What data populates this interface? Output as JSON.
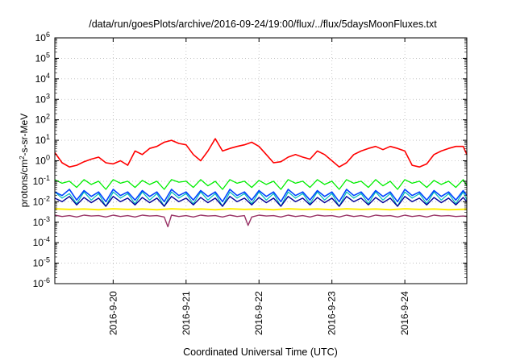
{
  "chart_data": {
    "type": "line",
    "title": "/data/run/goesPlots/archive/2016-09-24/19:00/flux/../flux/5daysMoonFluxes.txt",
    "xlabel": "Coordinated Universal Time (UTC)",
    "ylabel": "protons/cm²-s-sr-MeV",
    "ylabel_parts": {
      "pre": "protons/cm",
      "sup": "2",
      "post": "-s-sr-MeV"
    },
    "yscale": "log",
    "ylim_exp": [
      -6,
      6
    ],
    "xlim_days": [
      19.2,
      24.85
    ],
    "grid": true,
    "x_ticks": [
      {
        "day": 20,
        "label": "2016-9-20"
      },
      {
        "day": 21,
        "label": "2016-9-21"
      },
      {
        "day": 22,
        "label": "2016-9-22"
      },
      {
        "day": 23,
        "label": "2016-9-23"
      },
      {
        "day": 24,
        "label": "2016-9-24"
      }
    ],
    "y_ticks": [
      {
        "exp": -6,
        "base": "10",
        "sup": "-6"
      },
      {
        "exp": -5,
        "base": "10",
        "sup": "-5"
      },
      {
        "exp": -4,
        "base": "10",
        "sup": "-4"
      },
      {
        "exp": -3,
        "base": "10",
        "sup": "-3"
      },
      {
        "exp": -2,
        "base": "10",
        "sup": "-2"
      },
      {
        "exp": -1,
        "base": "10",
        "sup": "-1"
      },
      {
        "exp": 0,
        "base": "10",
        "sup": "0"
      },
      {
        "exp": 1,
        "base": "10",
        "sup": "1"
      },
      {
        "exp": 2,
        "base": "10",
        "sup": "2"
      },
      {
        "exp": 3,
        "base": "10",
        "sup": "3"
      },
      {
        "exp": 4,
        "base": "10",
        "sup": "4"
      },
      {
        "exp": 5,
        "base": "10",
        "sup": "5"
      },
      {
        "exp": 6,
        "base": "10",
        "sup": "6"
      }
    ],
    "series": [
      {
        "color": "#ff0000",
        "width": 1.6,
        "x": [
          19.2,
          19.3,
          19.4,
          19.5,
          19.6,
          19.7,
          19.8,
          19.9,
          20.0,
          20.1,
          20.2,
          20.3,
          20.4,
          20.5,
          20.6,
          20.7,
          20.8,
          20.9,
          21.0,
          21.1,
          21.2,
          21.3,
          21.4,
          21.5,
          21.6,
          21.7,
          21.8,
          21.9,
          22.0,
          22.1,
          22.2,
          22.3,
          22.4,
          22.5,
          22.6,
          22.7,
          22.8,
          22.9,
          23.0,
          23.1,
          23.2,
          23.3,
          23.4,
          23.5,
          23.6,
          23.7,
          23.8,
          23.9,
          24.0,
          24.1,
          24.2,
          24.3,
          24.4,
          24.5,
          24.6,
          24.7,
          24.8,
          24.85
        ],
        "y": [
          2.5,
          0.8,
          0.5,
          0.6,
          0.9,
          1.2,
          1.5,
          0.8,
          0.7,
          1.0,
          0.6,
          3.0,
          2.0,
          4.0,
          5.0,
          8.0,
          10.0,
          7.0,
          6.0,
          2.0,
          1.0,
          3.0,
          12.0,
          3.0,
          4.0,
          5.0,
          6.0,
          8.0,
          5.0,
          2.0,
          0.8,
          0.9,
          1.5,
          2.0,
          1.5,
          1.2,
          3.0,
          2.0,
          1.0,
          0.5,
          0.8,
          2.0,
          3.0,
          4.0,
          5.0,
          3.5,
          5.0,
          4.0,
          3.0,
          0.6,
          0.5,
          0.7,
          2.0,
          3.0,
          4.0,
          5.0,
          5.0,
          2.0
        ]
      },
      {
        "color": "#00ee00",
        "width": 1.3,
        "x": [
          19.2,
          19.3,
          19.4,
          19.5,
          19.6,
          19.7,
          19.8,
          19.9,
          20.0,
          20.1,
          20.2,
          20.3,
          20.4,
          20.5,
          20.6,
          20.7,
          20.8,
          20.9,
          21.0,
          21.1,
          21.2,
          21.3,
          21.4,
          21.5,
          21.6,
          21.7,
          21.8,
          21.9,
          22.0,
          22.1,
          22.2,
          22.3,
          22.4,
          22.5,
          22.6,
          22.7,
          22.8,
          22.9,
          23.0,
          23.1,
          23.2,
          23.3,
          23.4,
          23.5,
          23.6,
          23.7,
          23.8,
          23.9,
          24.0,
          24.1,
          24.2,
          24.3,
          24.4,
          24.5,
          24.6,
          24.7,
          24.8,
          24.85
        ],
        "y": [
          0.12,
          0.08,
          0.1,
          0.05,
          0.12,
          0.07,
          0.1,
          0.04,
          0.12,
          0.08,
          0.1,
          0.05,
          0.11,
          0.07,
          0.1,
          0.04,
          0.12,
          0.09,
          0.1,
          0.05,
          0.12,
          0.06,
          0.1,
          0.04,
          0.12,
          0.08,
          0.1,
          0.05,
          0.11,
          0.07,
          0.1,
          0.04,
          0.12,
          0.08,
          0.1,
          0.05,
          0.12,
          0.07,
          0.1,
          0.04,
          0.12,
          0.08,
          0.1,
          0.05,
          0.12,
          0.06,
          0.1,
          0.04,
          0.12,
          0.08,
          0.1,
          0.05,
          0.11,
          0.07,
          0.1,
          0.05,
          0.12,
          0.06
        ]
      },
      {
        "color": "#00bbbb",
        "width": 1.2,
        "x": [
          19.2,
          19.3,
          19.4,
          19.5,
          19.6,
          19.7,
          19.8,
          19.9,
          20.0,
          20.1,
          20.2,
          20.3,
          20.4,
          20.5,
          20.6,
          20.7,
          20.8,
          20.9,
          21.0,
          21.1,
          21.2,
          21.3,
          21.4,
          21.5,
          21.6,
          21.7,
          21.8,
          21.9,
          22.0,
          22.1,
          22.2,
          22.3,
          22.4,
          22.5,
          22.6,
          22.7,
          22.8,
          22.9,
          23.0,
          23.1,
          23.2,
          23.3,
          23.4,
          23.5,
          23.6,
          23.7,
          23.8,
          23.9,
          24.0,
          24.1,
          24.2,
          24.3,
          24.4,
          24.5,
          24.6,
          24.7,
          24.8,
          24.85
        ],
        "y": [
          0.03,
          0.015,
          0.025,
          0.008,
          0.03,
          0.012,
          0.025,
          0.006,
          0.03,
          0.015,
          0.025,
          0.008,
          0.03,
          0.012,
          0.025,
          0.006,
          0.03,
          0.015,
          0.025,
          0.008,
          0.03,
          0.012,
          0.025,
          0.006,
          0.03,
          0.015,
          0.025,
          0.008,
          0.03,
          0.012,
          0.025,
          0.006,
          0.03,
          0.015,
          0.025,
          0.008,
          0.03,
          0.012,
          0.025,
          0.006,
          0.03,
          0.015,
          0.025,
          0.008,
          0.03,
          0.012,
          0.025,
          0.006,
          0.03,
          0.015,
          0.025,
          0.008,
          0.03,
          0.012,
          0.025,
          0.008,
          0.03,
          0.012
        ]
      },
      {
        "color": "#0044ff",
        "width": 1.6,
        "x": [
          19.2,
          19.3,
          19.4,
          19.5,
          19.6,
          19.7,
          19.8,
          19.9,
          20.0,
          20.1,
          20.2,
          20.3,
          20.4,
          20.5,
          20.6,
          20.7,
          20.8,
          20.9,
          21.0,
          21.1,
          21.2,
          21.3,
          21.4,
          21.5,
          21.6,
          21.7,
          21.8,
          21.9,
          22.0,
          22.1,
          22.2,
          22.3,
          22.4,
          22.5,
          22.6,
          22.7,
          22.8,
          22.9,
          23.0,
          23.1,
          23.2,
          23.3,
          23.4,
          23.5,
          23.6,
          23.7,
          23.8,
          23.9,
          24.0,
          24.1,
          24.2,
          24.3,
          24.4,
          24.5,
          24.6,
          24.7,
          24.8,
          24.85
        ],
        "y": [
          0.03,
          0.02,
          0.04,
          0.012,
          0.035,
          0.018,
          0.03,
          0.01,
          0.04,
          0.02,
          0.03,
          0.012,
          0.035,
          0.018,
          0.03,
          0.01,
          0.04,
          0.02,
          0.03,
          0.012,
          0.035,
          0.018,
          0.03,
          0.01,
          0.04,
          0.02,
          0.03,
          0.012,
          0.035,
          0.018,
          0.03,
          0.01,
          0.04,
          0.02,
          0.03,
          0.012,
          0.035,
          0.018,
          0.03,
          0.01,
          0.04,
          0.02,
          0.03,
          0.012,
          0.035,
          0.018,
          0.03,
          0.01,
          0.04,
          0.02,
          0.03,
          0.012,
          0.035,
          0.018,
          0.03,
          0.012,
          0.035,
          0.02
        ]
      },
      {
        "color": "#000099",
        "width": 1.4,
        "x": [
          19.2,
          19.3,
          19.4,
          19.5,
          19.6,
          19.7,
          19.8,
          19.9,
          20.0,
          20.1,
          20.2,
          20.3,
          20.4,
          20.5,
          20.6,
          20.7,
          20.8,
          20.9,
          21.0,
          21.1,
          21.2,
          21.3,
          21.4,
          21.5,
          21.6,
          21.7,
          21.8,
          21.9,
          22.0,
          22.1,
          22.2,
          22.3,
          22.4,
          22.5,
          22.6,
          22.7,
          22.8,
          22.9,
          23.0,
          23.1,
          23.2,
          23.3,
          23.4,
          23.5,
          23.6,
          23.7,
          23.8,
          23.9,
          24.0,
          24.1,
          24.2,
          24.3,
          24.4,
          24.5,
          24.6,
          24.7,
          24.8,
          24.85
        ],
        "y": [
          0.015,
          0.01,
          0.018,
          0.007,
          0.016,
          0.009,
          0.015,
          0.006,
          0.018,
          0.01,
          0.015,
          0.007,
          0.016,
          0.009,
          0.015,
          0.006,
          0.018,
          0.01,
          0.015,
          0.007,
          0.016,
          0.009,
          0.015,
          0.006,
          0.018,
          0.01,
          0.015,
          0.007,
          0.016,
          0.009,
          0.015,
          0.006,
          0.018,
          0.01,
          0.015,
          0.007,
          0.016,
          0.009,
          0.015,
          0.006,
          0.018,
          0.01,
          0.015,
          0.007,
          0.016,
          0.009,
          0.015,
          0.006,
          0.018,
          0.01,
          0.015,
          0.007,
          0.016,
          0.009,
          0.015,
          0.007,
          0.016,
          0.01
        ]
      },
      {
        "color": "#ffee00",
        "width": 2.0,
        "x": [
          19.2,
          19.4,
          19.6,
          19.8,
          20.0,
          20.2,
          20.4,
          20.6,
          20.8,
          21.0,
          21.2,
          21.4,
          21.6,
          21.8,
          22.0,
          22.2,
          22.4,
          22.6,
          22.8,
          23.0,
          23.2,
          23.4,
          23.6,
          23.8,
          24.0,
          24.2,
          24.4,
          24.6,
          24.85
        ],
        "y": [
          0.0045,
          0.0042,
          0.0044,
          0.0041,
          0.0045,
          0.0042,
          0.0044,
          0.0041,
          0.0045,
          0.0042,
          0.0044,
          0.0041,
          0.0045,
          0.0042,
          0.0044,
          0.0041,
          0.0045,
          0.0042,
          0.0044,
          0.0041,
          0.0045,
          0.0042,
          0.0044,
          0.0041,
          0.0045,
          0.0042,
          0.0044,
          0.0041,
          0.0043
        ]
      },
      {
        "color": "#993366",
        "width": 1.4,
        "x": [
          19.2,
          19.3,
          19.4,
          19.5,
          19.6,
          19.7,
          19.8,
          19.9,
          20.0,
          20.1,
          20.2,
          20.3,
          20.4,
          20.5,
          20.6,
          20.7,
          20.75,
          20.8,
          20.9,
          21.0,
          21.1,
          21.2,
          21.3,
          21.4,
          21.5,
          21.6,
          21.7,
          21.8,
          21.85,
          21.9,
          22.0,
          22.1,
          22.2,
          22.3,
          22.4,
          22.5,
          22.6,
          22.7,
          22.8,
          22.9,
          23.0,
          23.1,
          23.2,
          23.3,
          23.4,
          23.5,
          23.6,
          23.7,
          23.8,
          23.9,
          24.0,
          24.1,
          24.2,
          24.3,
          24.4,
          24.5,
          24.6,
          24.7,
          24.8,
          24.85
        ],
        "y": [
          0.0022,
          0.0019,
          0.0021,
          0.0018,
          0.0022,
          0.002,
          0.0021,
          0.0018,
          0.0022,
          0.0019,
          0.0021,
          0.0018,
          0.0022,
          0.002,
          0.0021,
          0.0018,
          0.0006,
          0.0022,
          0.0019,
          0.0021,
          0.0018,
          0.0022,
          0.002,
          0.0021,
          0.0018,
          0.0022,
          0.0019,
          0.0021,
          0.0007,
          0.0018,
          0.0022,
          0.002,
          0.0021,
          0.0018,
          0.0022,
          0.0019,
          0.0021,
          0.0018,
          0.0022,
          0.002,
          0.0021,
          0.0018,
          0.0022,
          0.0019,
          0.0021,
          0.0018,
          0.0022,
          0.002,
          0.0021,
          0.0018,
          0.0022,
          0.0019,
          0.0021,
          0.0018,
          0.0022,
          0.002,
          0.0021,
          0.0019,
          0.002,
          0.0019
        ]
      }
    ]
  }
}
